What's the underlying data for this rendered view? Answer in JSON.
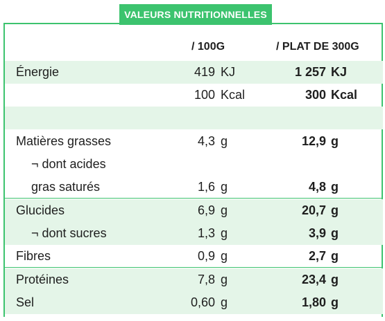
{
  "title": "VALEURS NUTRITIONNELLES",
  "columns": {
    "per100": "/ 100G",
    "perPlat": "/ PLAT DE 300G"
  },
  "rows": [
    {
      "label": "Énergie",
      "v100": "419",
      "u100": "KJ",
      "vplat": "1 257",
      "uplat": "KJ"
    },
    {
      "label": "",
      "v100": "100",
      "u100": "Kcal",
      "vplat": "300",
      "uplat": "Kcal"
    },
    {
      "label": "",
      "v100": "",
      "u100": "",
      "vplat": "",
      "uplat": ""
    },
    {
      "label": "Matières grasses",
      "v100": "4,3",
      "u100": "g",
      "vplat": "12,9",
      "uplat": "g"
    },
    {
      "label": "¬ dont acides",
      "v100": "",
      "u100": "",
      "vplat": "",
      "uplat": ""
    },
    {
      "label": "gras saturés",
      "v100": "1,6",
      "u100": "g",
      "vplat": "4,8",
      "uplat": "g"
    },
    {
      "label": "Glucides",
      "v100": "6,9",
      "u100": "g",
      "vplat": "20,7",
      "uplat": "g"
    },
    {
      "label": "¬ dont sucres",
      "v100": "1,3",
      "u100": "g",
      "vplat": "3,9",
      "uplat": "g"
    },
    {
      "label": "Fibres",
      "v100": "0,9",
      "u100": "g",
      "vplat": "2,7",
      "uplat": "g"
    },
    {
      "label": "Protéines",
      "v100": "7,8",
      "u100": "g",
      "vplat": "23,4",
      "uplat": "g"
    },
    {
      "label": "Sel",
      "v100": "0,60",
      "u100": "g",
      "vplat": "1,80",
      "uplat": "g"
    }
  ],
  "colors": {
    "accent": "#3cc36e",
    "shade": "#e4f5e8",
    "text": "#1e1e1e"
  }
}
